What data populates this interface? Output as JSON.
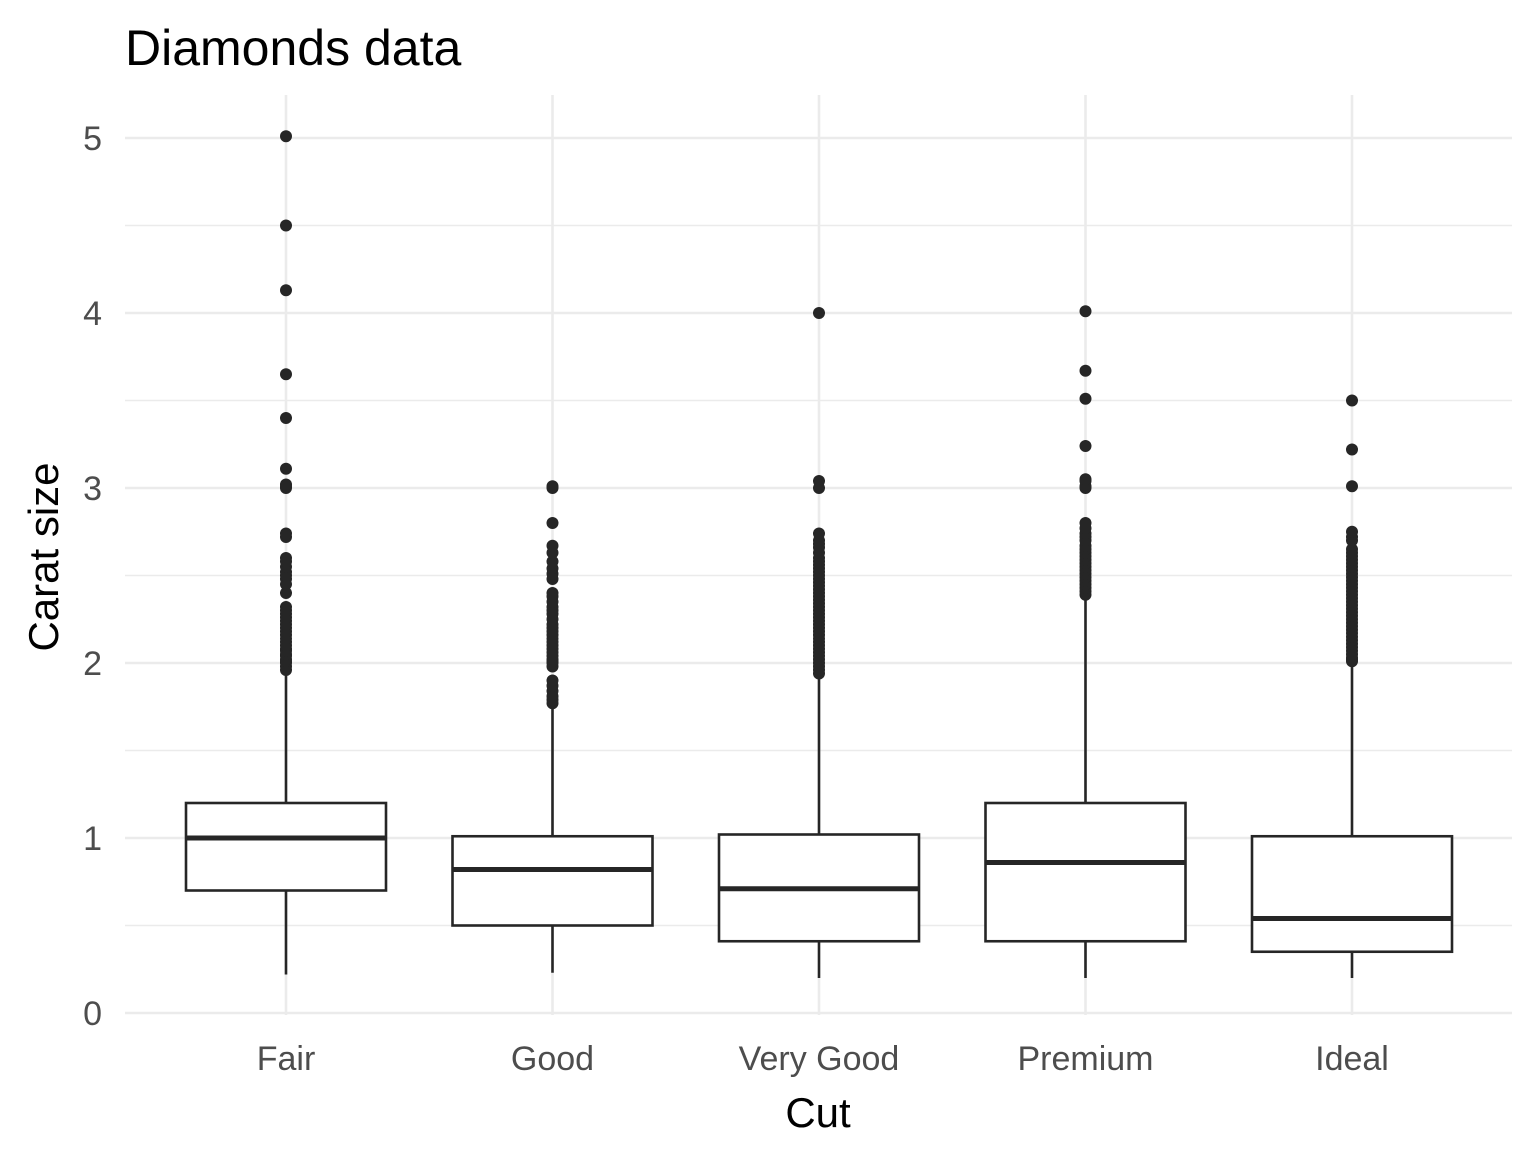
{
  "chart_data": {
    "type": "boxplot",
    "title": "Diamonds data",
    "xlabel": "Cut",
    "ylabel": "Carat size",
    "ylim": [
      0,
      5.2
    ],
    "y_ticks": [
      0,
      1,
      2,
      3,
      4,
      5
    ],
    "y_minor_ticks": [
      0.5,
      1.5,
      2.5,
      3.5,
      4.5
    ],
    "grid": true,
    "legend": "none",
    "categories": [
      "Fair",
      "Good",
      "Very Good",
      "Premium",
      "Ideal"
    ],
    "boxes": [
      {
        "category": "Fair",
        "whisker_low": 0.22,
        "q1": 0.7,
        "median": 1.0,
        "q3": 1.2,
        "whisker_high": 1.95,
        "outliers": [
          1.96,
          1.98,
          2.0,
          2.01,
          2.02,
          2.04,
          2.05,
          2.07,
          2.08,
          2.1,
          2.12,
          2.14,
          2.16,
          2.18,
          2.2,
          2.22,
          2.24,
          2.26,
          2.28,
          2.3,
          2.32,
          2.4,
          2.45,
          2.48,
          2.5,
          2.52,
          2.55,
          2.58,
          2.6,
          2.72,
          2.74,
          3.0,
          3.01,
          3.02,
          3.11,
          3.4,
          3.65,
          4.13,
          4.5,
          5.01
        ]
      },
      {
        "category": "Good",
        "whisker_low": 0.23,
        "q1": 0.5,
        "median": 0.82,
        "q3": 1.01,
        "whisker_high": 1.76,
        "outliers": [
          1.77,
          1.79,
          1.81,
          1.84,
          1.87,
          1.9,
          1.98,
          2.0,
          2.01,
          2.02,
          2.04,
          2.06,
          2.08,
          2.1,
          2.12,
          2.14,
          2.16,
          2.18,
          2.2,
          2.22,
          2.25,
          2.28,
          2.3,
          2.32,
          2.35,
          2.38,
          2.4,
          2.48,
          2.51,
          2.54,
          2.58,
          2.63,
          2.67,
          2.8,
          3.0,
          3.01
        ]
      },
      {
        "category": "Very Good",
        "whisker_low": 0.2,
        "q1": 0.41,
        "median": 0.71,
        "q3": 1.02,
        "whisker_high": 1.93,
        "outliers": [
          1.94,
          1.96,
          1.98,
          2.0,
          2.02,
          2.04,
          2.06,
          2.08,
          2.1,
          2.12,
          2.14,
          2.16,
          2.18,
          2.2,
          2.22,
          2.24,
          2.26,
          2.28,
          2.3,
          2.32,
          2.34,
          2.36,
          2.38,
          2.4,
          2.42,
          2.44,
          2.46,
          2.48,
          2.5,
          2.52,
          2.54,
          2.56,
          2.58,
          2.6,
          2.63,
          2.66,
          2.68,
          2.7,
          2.74,
          3.0,
          3.04,
          4.0
        ]
      },
      {
        "category": "Premium",
        "whisker_low": 0.2,
        "q1": 0.41,
        "median": 0.86,
        "q3": 1.2,
        "whisker_high": 2.38,
        "outliers": [
          2.39,
          2.41,
          2.43,
          2.45,
          2.47,
          2.49,
          2.51,
          2.53,
          2.55,
          2.57,
          2.59,
          2.61,
          2.63,
          2.65,
          2.67,
          2.7,
          2.72,
          2.74,
          2.77,
          2.8,
          3.0,
          3.01,
          3.04,
          3.05,
          3.24,
          3.51,
          3.67,
          4.01
        ]
      },
      {
        "category": "Ideal",
        "whisker_low": 0.2,
        "q1": 0.35,
        "median": 0.54,
        "q3": 1.01,
        "whisker_high": 2.0,
        "outliers": [
          2.01,
          2.02,
          2.03,
          2.05,
          2.07,
          2.09,
          2.11,
          2.13,
          2.15,
          2.17,
          2.19,
          2.21,
          2.23,
          2.25,
          2.27,
          2.29,
          2.31,
          2.33,
          2.35,
          2.37,
          2.39,
          2.41,
          2.43,
          2.45,
          2.47,
          2.49,
          2.51,
          2.53,
          2.55,
          2.57,
          2.59,
          2.61,
          2.63,
          2.65,
          2.7,
          2.72,
          2.75,
          3.01,
          3.22,
          3.5
        ]
      }
    ]
  }
}
